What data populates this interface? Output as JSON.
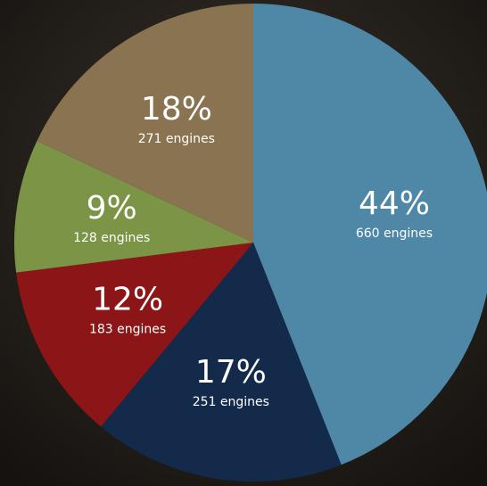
{
  "chart_data": {
    "type": "pie",
    "values": [
      44,
      17,
      12,
      9,
      18
    ],
    "value_labels": [
      "44%",
      "17%",
      "12%",
      "9%",
      "18%"
    ],
    "detail_labels": [
      "660 engines",
      "251 engines",
      "183 engines",
      "128 engines",
      "271 engines"
    ],
    "colors": [
      "#4f87a6",
      "#142a4a",
      "#8c1517",
      "#7c9446",
      "#8a7350"
    ]
  }
}
